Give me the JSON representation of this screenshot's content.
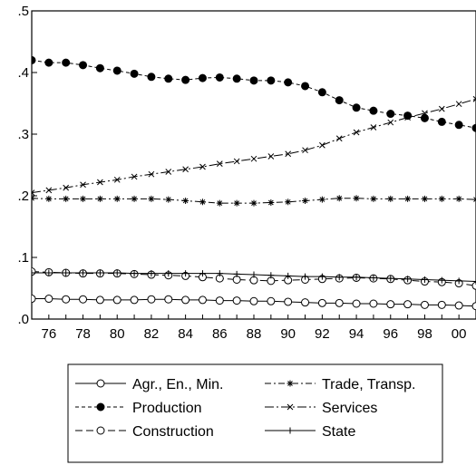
{
  "chart_data": {
    "type": "line",
    "title": "",
    "xlabel": "",
    "ylabel": "",
    "xlim": [
      1975,
      2001
    ],
    "ylim": [
      0.0,
      0.5
    ],
    "grid": false,
    "legend_position": "bottom",
    "x_tick_values": [
      1976,
      1978,
      1980,
      1982,
      1984,
      1986,
      1988,
      1990,
      1992,
      1994,
      1996,
      1998,
      2000
    ],
    "x_tick_labels": [
      "76",
      "78",
      "80",
      "82",
      "84",
      "86",
      "88",
      "90",
      "92",
      "94",
      "96",
      "98",
      "00"
    ],
    "y_tick_values": [
      0.0,
      0.1,
      0.2,
      0.3,
      0.4,
      0.5
    ],
    "y_tick_labels": [
      ".0",
      ".1",
      ".2",
      ".3",
      ".4",
      ".5"
    ],
    "x": [
      1975,
      1976,
      1977,
      1978,
      1979,
      1980,
      1981,
      1982,
      1983,
      1984,
      1985,
      1986,
      1987,
      1988,
      1989,
      1990,
      1991,
      1992,
      1993,
      1994,
      1995,
      1996,
      1997,
      1998,
      1999,
      2000,
      2001
    ],
    "series": [
      {
        "name": "Agr., En., Min.",
        "line_style": "solid",
        "marker": "open-circle",
        "values": [
          0.033,
          0.033,
          0.032,
          0.032,
          0.031,
          0.031,
          0.031,
          0.032,
          0.032,
          0.031,
          0.031,
          0.03,
          0.03,
          0.029,
          0.029,
          0.028,
          0.027,
          0.026,
          0.026,
          0.025,
          0.025,
          0.024,
          0.024,
          0.023,
          0.023,
          0.022,
          0.021
        ]
      },
      {
        "name": "Production",
        "line_style": "dashed",
        "marker": "filled-circle",
        "values": [
          0.42,
          0.416,
          0.416,
          0.412,
          0.407,
          0.403,
          0.398,
          0.393,
          0.39,
          0.388,
          0.391,
          0.392,
          0.39,
          0.387,
          0.387,
          0.384,
          0.378,
          0.368,
          0.355,
          0.343,
          0.338,
          0.333,
          0.33,
          0.326,
          0.32,
          0.315,
          0.31
        ]
      },
      {
        "name": "Construction",
        "line_style": "long-dash",
        "marker": "open-circle",
        "values": [
          0.077,
          0.076,
          0.075,
          0.074,
          0.074,
          0.074,
          0.073,
          0.072,
          0.071,
          0.07,
          0.068,
          0.066,
          0.064,
          0.063,
          0.062,
          0.063,
          0.064,
          0.065,
          0.066,
          0.067,
          0.066,
          0.065,
          0.063,
          0.061,
          0.06,
          0.058,
          0.054
        ]
      },
      {
        "name": "Trade, Transp.",
        "line_style": "dash-dot",
        "marker": "star",
        "values": [
          0.196,
          0.195,
          0.195,
          0.195,
          0.195,
          0.195,
          0.195,
          0.195,
          0.194,
          0.192,
          0.19,
          0.188,
          0.188,
          0.188,
          0.189,
          0.19,
          0.192,
          0.194,
          0.196,
          0.196,
          0.195,
          0.195,
          0.195,
          0.195,
          0.195,
          0.195,
          0.194
        ]
      },
      {
        "name": "Services",
        "line_style": "long-dash-dot",
        "marker": "x",
        "values": [
          0.205,
          0.209,
          0.213,
          0.218,
          0.222,
          0.226,
          0.231,
          0.235,
          0.239,
          0.243,
          0.247,
          0.252,
          0.256,
          0.26,
          0.264,
          0.268,
          0.274,
          0.282,
          0.293,
          0.303,
          0.311,
          0.319,
          0.327,
          0.334,
          0.341,
          0.349,
          0.357
        ]
      },
      {
        "name": "State",
        "line_style": "solid",
        "marker": "plus",
        "values": [
          0.075,
          0.075,
          0.075,
          0.075,
          0.075,
          0.075,
          0.074,
          0.074,
          0.074,
          0.074,
          0.074,
          0.074,
          0.073,
          0.072,
          0.071,
          0.07,
          0.069,
          0.069,
          0.068,
          0.068,
          0.067,
          0.066,
          0.065,
          0.064,
          0.063,
          0.062,
          0.061
        ]
      }
    ]
  }
}
